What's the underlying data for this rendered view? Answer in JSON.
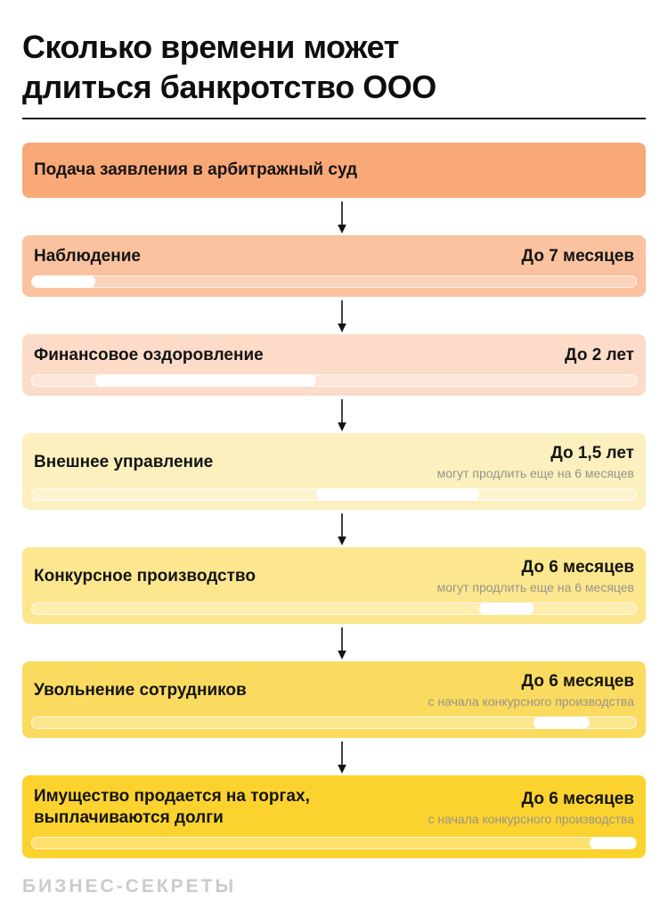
{
  "page": {
    "title": "Сколько времени может длиться банкротство ООО",
    "footer_logo": "БИЗНЕС-СЕКРЕТЫ"
  },
  "colors": {
    "text": "#141414",
    "note_text": "#98948a",
    "logo_text": "#cbcbc9",
    "bar_fill": "#ffffff"
  },
  "stages": [
    {
      "label": "Подача заявления в арбитражный суд",
      "color": "#F9A877",
      "duration": "",
      "note": "",
      "bar": null
    },
    {
      "label": "Наблюдение",
      "color": "#FAC29E",
      "duration": "До 7 месяцев",
      "note": "",
      "bar": {
        "start_pct": 0,
        "end_pct": 10.5
      }
    },
    {
      "label": "Финансовое оздоровление",
      "color": "#FCDCC8",
      "duration": "До 2 лет",
      "note": "",
      "bar": {
        "start_pct": 10.5,
        "end_pct": 47
      }
    },
    {
      "label": "Внешнее управление",
      "color": "#FBF0BE",
      "duration": "До 1,5 лет",
      "note": "могут продлить еще на 6 месяцев",
      "bar": {
        "start_pct": 47,
        "end_pct": 74
      }
    },
    {
      "label": "Конкурсное производство",
      "color": "#FCE78F",
      "duration": "До 6 месяцев",
      "note": "могут продлить еще на 6 месяцев",
      "bar": {
        "start_pct": 74,
        "end_pct": 83
      }
    },
    {
      "label": "Увольнение сотрудников",
      "color": "#FADB60",
      "duration": "До 6 месяцев",
      "note": "с начала конкурсного производства",
      "bar": {
        "start_pct": 83,
        "end_pct": 92.3
      }
    },
    {
      "label": "Имущество продается на торгах,\nвыплачиваются долги",
      "color": "#FCD32E",
      "duration": "До 6 месяцев",
      "note": "с начала конкурсного производства",
      "bar": {
        "start_pct": 92.3,
        "end_pct": 100
      }
    }
  ]
}
